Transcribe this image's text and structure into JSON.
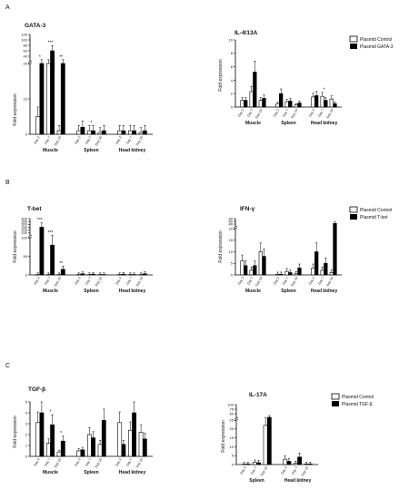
{
  "panels": [
    {
      "letter": "A",
      "legend": [
        "Plasmid Control",
        "Plasmid GATA-3"
      ]
    },
    {
      "letter": "B",
      "legend": [
        "Plasmid Control",
        "Plasmid T-bet"
      ]
    },
    {
      "letter": "C",
      "legend": [
        "Plasmid Control",
        "Plasmid TGF-β"
      ]
    }
  ],
  "chart_data": [
    {
      "type": "bar",
      "panel": "A",
      "title": "GATA-3",
      "ylabel": "Fold expression",
      "y_ticks_lower": [
        0,
        10,
        20
      ],
      "y_ticks_upper": [
        20,
        40,
        60,
        80,
        100,
        120
      ],
      "groups": [
        "Muscle",
        "Spleen",
        "Head kidney"
      ],
      "days": [
        "Day 2",
        "Day 7",
        "Day 19"
      ],
      "series": [
        {
          "name": "Plasmid Control",
          "values": [
            5,
            20,
            1,
            1,
            1,
            0.5,
            1,
            1,
            0.5
          ]
        },
        {
          "name": "Plasmid GATA-3",
          "values": [
            20,
            60,
            20,
            2,
            1,
            1,
            1,
            1,
            1
          ]
        }
      ],
      "significance": [
        "*",
        "***",
        "**",
        "",
        "*",
        "",
        "",
        "",
        ""
      ]
    },
    {
      "type": "bar",
      "panel": "A",
      "title": "IL-4/13A",
      "ylabel": "Fold expression",
      "ylim": [
        0,
        10
      ],
      "y_ticks": [
        0,
        2,
        4,
        6,
        8,
        10
      ],
      "groups": [
        "Muscle",
        "Spleen",
        "Head kidney"
      ],
      "days": [
        "Day 2",
        "Day 7",
        "Day 19"
      ],
      "series": [
        {
          "name": "Plasmid Control",
          "values": [
            1.0,
            2.3,
            1.0,
            0.5,
            0.8,
            0.3,
            1.5,
            1.6,
            1.2
          ]
        },
        {
          "name": "Plasmid GATA-3",
          "values": [
            1.0,
            5.2,
            1.3,
            2.0,
            0.9,
            0.6,
            1.7,
            1.0,
            0.5
          ]
        }
      ],
      "significance": [
        "",
        "",
        "",
        "",
        "",
        "",
        "",
        "*",
        ""
      ]
    },
    {
      "type": "bar",
      "panel": "B",
      "title": "T-bet",
      "ylabel": "Fold expression",
      "y_ticks_lower": [
        0,
        50,
        100
      ],
      "y_ticks_upper": [
        100,
        150,
        200,
        250,
        300,
        350,
        400
      ],
      "groups": [
        "Muscle",
        "Spleen",
        "Head kidney"
      ],
      "days": [
        "Day 2",
        "Day 7",
        "Day 19"
      ],
      "series": [
        {
          "name": "Plasmid Control",
          "values": [
            1,
            1,
            1,
            1,
            1,
            1,
            1,
            1,
            1
          ]
        },
        {
          "name": "Plasmid T-bet",
          "values": [
            250,
            80,
            15,
            3,
            2,
            1,
            2,
            1,
            3
          ]
        }
      ],
      "significance": [
        "***",
        "***",
        "**",
        "",
        "",
        "",
        "",
        "",
        ""
      ]
    },
    {
      "type": "bar",
      "panel": "B",
      "title": "IFN-γ",
      "ylabel": "Fold expression",
      "y_ticks_lower": [
        0,
        5,
        10,
        15,
        20
      ],
      "y_ticks_upper": [
        20,
        40,
        60,
        80
      ],
      "groups": [
        "Muscle",
        "Spleen",
        "Head kidney"
      ],
      "days": [
        "Day 2",
        "Day 7",
        "Day 19"
      ],
      "series": [
        {
          "name": "Plasmid Control",
          "values": [
            6,
            2,
            10,
            0.3,
            1.5,
            0.5,
            3,
            2,
            1
          ]
        },
        {
          "name": "Plasmid T-bet",
          "values": [
            4,
            4,
            8,
            0.3,
            1,
            3,
            10,
            5,
            45
          ]
        }
      ],
      "significance": [
        "",
        "",
        "",
        "",
        "",
        "",
        "",
        "",
        ""
      ]
    },
    {
      "type": "bar",
      "panel": "C",
      "title": "TGF-β",
      "ylabel": "Fold expression",
      "ylim": [
        0,
        5
      ],
      "y_ticks": [
        0,
        1,
        2,
        3,
        4,
        5
      ],
      "groups": [
        "Muscle",
        "Spleen",
        "Head kidney"
      ],
      "days": [
        "Day 2",
        "Day 7",
        "Day 19"
      ],
      "series": [
        {
          "name": "Plasmid Control",
          "values": [
            3.1,
            1.2,
            0.4,
            0.5,
            2.0,
            1.1,
            3.1,
            2.4,
            2.2
          ]
        },
        {
          "name": "Plasmid TGF-β",
          "values": [
            4.0,
            2.9,
            1.4,
            0.6,
            1.7,
            3.3,
            1.1,
            4.0,
            1.6
          ]
        }
      ],
      "significance": [
        "",
        "*",
        "*",
        "",
        "",
        "",
        "",
        "",
        ""
      ]
    },
    {
      "type": "bar",
      "panel": "C",
      "title": "IL-17A",
      "ylabel": "Fold expression",
      "y_ticks_lower": [
        0,
        5,
        10,
        15,
        20,
        25
      ],
      "y_ticks_upper": [
        25,
        50,
        75,
        100
      ],
      "groups": [
        "Spleen",
        "Head kidney"
      ],
      "days": [
        "Day 2",
        "Day 7",
        "Day 19"
      ],
      "series": [
        {
          "name": "Plasmid Control",
          "values": [
            0.2,
            1.2,
            22,
            3.0,
            0.7,
            0.3
          ]
        },
        {
          "name": "Plasmid TGF-β",
          "values": [
            0.3,
            1.0,
            30,
            1.8,
            4.2,
            0.3
          ]
        }
      ],
      "significance": [
        "",
        "",
        "",
        "",
        "",
        ""
      ]
    }
  ]
}
